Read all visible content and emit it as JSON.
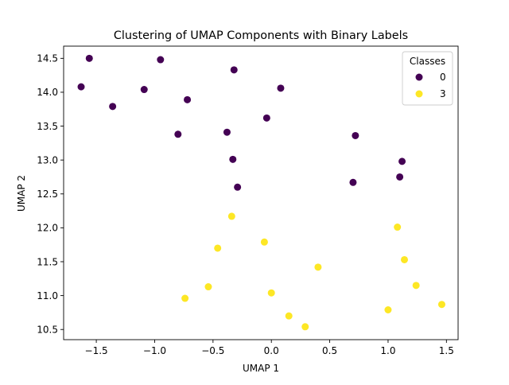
{
  "chart_data": {
    "type": "scatter",
    "title": "Clustering of UMAP Components with Binary Labels",
    "xlabel": "UMAP 1",
    "ylabel": "UMAP 2",
    "xlim": [
      -1.78,
      1.6
    ],
    "ylim": [
      10.35,
      14.68
    ],
    "xticks": [
      -1.5,
      -1.0,
      -0.5,
      0.0,
      0.5,
      1.0,
      1.5
    ],
    "xtick_labels": [
      "−1.5",
      "−1.0",
      "−0.5",
      "0.0",
      "0.5",
      "1.0",
      "1.5"
    ],
    "yticks": [
      10.5,
      11.0,
      11.5,
      12.0,
      12.5,
      13.0,
      13.5,
      14.0,
      14.5
    ],
    "ytick_labels": [
      "10.5",
      "11.0",
      "11.5",
      "12.0",
      "12.5",
      "13.0",
      "13.5",
      "14.0",
      "14.5"
    ],
    "grid": false,
    "legend": {
      "title": "Classes",
      "placement": "top-right",
      "entries": [
        {
          "label": "0",
          "color": "#440154"
        },
        {
          "label": "3",
          "color": "#fde725"
        }
      ]
    },
    "series": [
      {
        "name": "0",
        "color": "#440154",
        "points": [
          {
            "x": -1.56,
            "y": 14.5
          },
          {
            "x": -0.95,
            "y": 14.48
          },
          {
            "x": -1.63,
            "y": 14.08
          },
          {
            "x": -1.09,
            "y": 14.04
          },
          {
            "x": -1.36,
            "y": 13.79
          },
          {
            "x": -0.72,
            "y": 13.89
          },
          {
            "x": -0.32,
            "y": 14.33
          },
          {
            "x": 0.08,
            "y": 14.06
          },
          {
            "x": -0.04,
            "y": 13.62
          },
          {
            "x": -0.8,
            "y": 13.38
          },
          {
            "x": -0.38,
            "y": 13.41
          },
          {
            "x": 0.72,
            "y": 13.36
          },
          {
            "x": -0.33,
            "y": 13.01
          },
          {
            "x": 1.12,
            "y": 12.98
          },
          {
            "x": 1.1,
            "y": 12.75
          },
          {
            "x": 0.7,
            "y": 12.67
          },
          {
            "x": -0.29,
            "y": 12.6
          }
        ]
      },
      {
        "name": "3",
        "color": "#fde725",
        "points": [
          {
            "x": -0.34,
            "y": 12.17
          },
          {
            "x": -0.06,
            "y": 11.79
          },
          {
            "x": -0.46,
            "y": 11.7
          },
          {
            "x": 0.4,
            "y": 11.42
          },
          {
            "x": 1.08,
            "y": 12.01
          },
          {
            "x": 1.14,
            "y": 11.53
          },
          {
            "x": -0.54,
            "y": 11.13
          },
          {
            "x": -0.74,
            "y": 10.96
          },
          {
            "x": 0.0,
            "y": 11.04
          },
          {
            "x": 1.24,
            "y": 11.15
          },
          {
            "x": 0.15,
            "y": 10.7
          },
          {
            "x": 0.29,
            "y": 10.54
          },
          {
            "x": 1.0,
            "y": 10.79
          },
          {
            "x": 1.46,
            "y": 10.87
          }
        ]
      }
    ]
  }
}
